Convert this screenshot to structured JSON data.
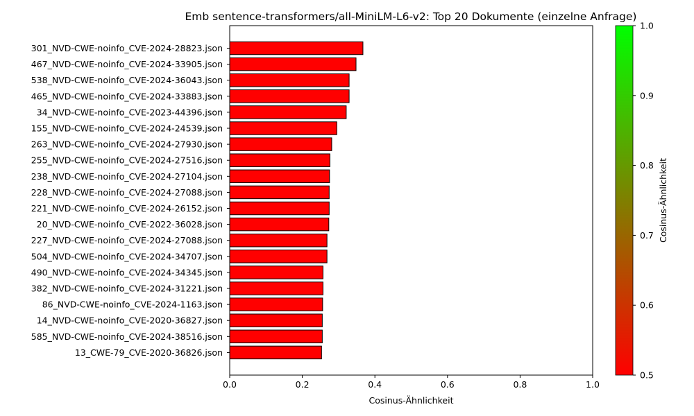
{
  "chart_data": {
    "type": "bar",
    "orientation": "horizontal",
    "title": "Emb sentence-transformers/all-MiniLM-L6-v2: Top 20 Dokumente (einzelne Anfrage)",
    "xlabel": "Cosinus-Ähnlichkeit",
    "ylabel": "",
    "xlim": [
      0,
      1.0
    ],
    "xticks": [
      "0.0",
      "0.2",
      "0.4",
      "0.6",
      "0.8",
      "1.0"
    ],
    "categories": [
      "301_NVD-CWE-noinfo_CVE-2024-28823.json",
      "467_NVD-CWE-noinfo_CVE-2024-33905.json",
      "538_NVD-CWE-noinfo_CVE-2024-36043.json",
      "465_NVD-CWE-noinfo_CVE-2024-33883.json",
      "34_NVD-CWE-noinfo_CVE-2023-44396.json",
      "155_NVD-CWE-noinfo_CVE-2024-24539.json",
      "263_NVD-CWE-noinfo_CVE-2024-27930.json",
      "255_NVD-CWE-noinfo_CVE-2024-27516.json",
      "238_NVD-CWE-noinfo_CVE-2024-27104.json",
      "228_NVD-CWE-noinfo_CVE-2024-27088.json",
      "221_NVD-CWE-noinfo_CVE-2024-26152.json",
      "20_NVD-CWE-noinfo_CVE-2022-36028.json",
      "227_NVD-CWE-noinfo_CVE-2024-27088.json",
      "504_NVD-CWE-noinfo_CVE-2024-34707.json",
      "490_NVD-CWE-noinfo_CVE-2024-34345.json",
      "382_NVD-CWE-noinfo_CVE-2024-31221.json",
      "86_NVD-CWE-noinfo_CVE-2024-1163.json",
      "14_NVD-CWE-noinfo_CVE-2020-36827.json",
      "585_NVD-CWE-noinfo_CVE-2024-38516.json",
      "13_CWE-79_CVE-2020-36826.json"
    ],
    "values": [
      0.367,
      0.348,
      0.329,
      0.329,
      0.321,
      0.295,
      0.281,
      0.276,
      0.275,
      0.274,
      0.274,
      0.273,
      0.268,
      0.268,
      0.257,
      0.257,
      0.256,
      0.255,
      0.255,
      0.253
    ],
    "bar_color": "#ff0000",
    "bar_edge_color": "#000000",
    "colorbar": {
      "label": "Cosinus-Ähnlichkeit",
      "range": [
        0.5,
        1.0
      ],
      "ticks": [
        "0.5",
        "0.6",
        "0.7",
        "0.8",
        "0.9",
        "1.0"
      ],
      "color_low": "#ff0000",
      "color_high": "#00ff00"
    }
  }
}
